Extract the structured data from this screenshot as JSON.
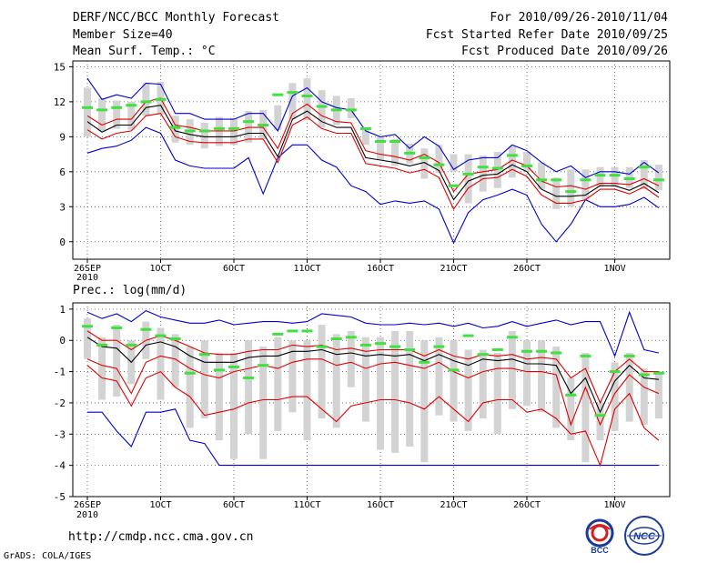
{
  "header": {
    "title": "DERF/NCC/BCC Monthly Forecast",
    "member_size": "Member Size=40",
    "variable": "Mean Surf. Temp.: °C",
    "period": "For 2010/09/26-2010/11/04",
    "refer_date": "Fcst Started Refer Date 2010/09/25",
    "produced_date": "Fcst Produced Date 2010/09/26"
  },
  "footer": {
    "url": "http://cmdp.ncc.cma.gov.cn",
    "credit": "GrADS: COLA/IGES",
    "logo_bcc": "BCC",
    "logo_ncc": "NCC"
  },
  "colors": {
    "box": "#d3d3d3",
    "mean": "#40e040",
    "median": "#000000",
    "quartile": "#e00000",
    "extreme": "#0000cc",
    "grid": "#555555"
  },
  "x_tick_labels": [
    {
      "day": 0,
      "label": "26SEP",
      "sub": "2010"
    },
    {
      "day": 5,
      "label": "1OCT"
    },
    {
      "day": 10,
      "label": "6OCT"
    },
    {
      "day": 15,
      "label": "11OCT"
    },
    {
      "day": 20,
      "label": "16OCT"
    },
    {
      "day": 25,
      "label": "21OCT"
    },
    {
      "day": 30,
      "label": "26OCT"
    },
    {
      "day": 36,
      "label": "1NOV"
    }
  ],
  "chart_data": [
    {
      "type": "box",
      "title": "Mean Surf. Temp.: °C",
      "ylabel": "°C",
      "ylim": [
        -1.5,
        15.5
      ],
      "yticks": [
        0,
        3,
        6,
        9,
        12,
        15
      ],
      "x_days": [
        0,
        1,
        2,
        3,
        4,
        5,
        6,
        7,
        8,
        9,
        10,
        11,
        12,
        13,
        14,
        15,
        16,
        17,
        18,
        19,
        20,
        21,
        22,
        23,
        24,
        25,
        26,
        27,
        28,
        29,
        30,
        31,
        32,
        33,
        34,
        35,
        36,
        37,
        38,
        39
      ],
      "max": [
        14.0,
        12.2,
        12.6,
        12.3,
        13.6,
        13.5,
        11.0,
        11.0,
        10.5,
        10.5,
        10.5,
        11.0,
        11.0,
        9.5,
        12.5,
        13.2,
        12.0,
        11.5,
        11.3,
        9.5,
        9.0,
        9.2,
        8.0,
        9.0,
        8.2,
        6.2,
        7.0,
        7.2,
        7.2,
        8.3,
        7.8,
        6.8,
        6.0,
        6.5,
        5.5,
        6.0,
        6.0,
        5.8,
        6.8,
        5.9
      ],
      "q3": [
        10.8,
        10.0,
        10.5,
        10.5,
        12.0,
        12.3,
        10.0,
        9.8,
        9.5,
        9.5,
        9.5,
        9.8,
        9.8,
        8.0,
        11.0,
        11.8,
        10.8,
        10.3,
        10.2,
        7.8,
        7.5,
        7.3,
        7.0,
        7.5,
        6.8,
        4.3,
        5.8,
        6.0,
        6.2,
        7.0,
        6.5,
        5.2,
        4.7,
        4.8,
        4.5,
        5.0,
        5.0,
        4.9,
        5.4,
        4.8
      ],
      "median": [
        10.3,
        9.4,
        10.0,
        10.0,
        11.5,
        11.7,
        9.5,
        9.2,
        9.0,
        9.0,
        9.0,
        9.3,
        9.3,
        7.3,
        10.5,
        11.2,
        10.3,
        9.8,
        9.8,
        7.2,
        7.0,
        6.8,
        6.5,
        6.8,
        6.1,
        3.6,
        5.2,
        5.7,
        5.8,
        6.6,
        6.0,
        4.5,
        3.9,
        3.9,
        4.0,
        4.8,
        4.8,
        4.4,
        5.0,
        4.2
      ],
      "q1": [
        9.6,
        8.8,
        9.3,
        9.5,
        10.8,
        11.0,
        9.0,
        8.6,
        8.5,
        8.5,
        8.5,
        8.8,
        8.8,
        6.8,
        10.0,
        10.7,
        9.7,
        9.3,
        9.3,
        6.7,
        6.5,
        6.3,
        5.9,
        6.2,
        5.5,
        2.8,
        4.6,
        5.4,
        5.5,
        6.2,
        5.6,
        4.0,
        3.3,
        3.3,
        3.6,
        4.5,
        4.5,
        4.1,
        4.7,
        3.8
      ],
      "min": [
        7.6,
        8.0,
        8.2,
        8.7,
        9.8,
        9.3,
        7.0,
        6.5,
        6.3,
        6.3,
        6.3,
        7.2,
        4.1,
        7.2,
        8.3,
        8.3,
        7.0,
        6.4,
        4.8,
        4.3,
        3.2,
        3.5,
        3.3,
        3.5,
        2.8,
        -0.1,
        2.5,
        3.6,
        4.0,
        4.5,
        4.0,
        1.5,
        0.0,
        1.5,
        3.6,
        3.0,
        3.0,
        3.2,
        3.8,
        2.9
      ],
      "box_low": [
        9.0,
        9.5,
        9.7,
        9.6,
        10.8,
        10.9,
        8.5,
        8.3,
        8.0,
        8.2,
        8.3,
        8.5,
        8.8,
        9.6,
        10.5,
        10.4,
        9.8,
        10.0,
        10.6,
        8.3,
        7.0,
        6.5,
        6.7,
        5.4,
        5.9,
        6.0,
        3.3,
        4.3,
        4.6,
        5.5,
        6.0,
        4.5,
        2.8,
        3.0,
        3.6,
        4.7,
        4.7,
        4.6,
        4.5,
        4.4
      ],
      "box_high": [
        13.2,
        12.3,
        12.1,
        12.0,
        13.6,
        13.7,
        10.8,
        10.5,
        10.2,
        10.7,
        10.6,
        11.2,
        11.3,
        11.7,
        13.6,
        14.0,
        13.0,
        12.5,
        12.3,
        9.8,
        9.0,
        8.8,
        8.4,
        8.0,
        8.3,
        7.5,
        7.5,
        7.4,
        7.7,
        8.2,
        7.7,
        6.8,
        5.5,
        6.2,
        6.2,
        6.4,
        6.4,
        6.4,
        7.0,
        6.6
      ],
      "mean": [
        11.5,
        11.3,
        11.5,
        11.7,
        12.0,
        12.2,
        9.8,
        9.5,
        9.5,
        9.7,
        9.7,
        10.3,
        10.0,
        12.6,
        12.8,
        12.5,
        11.6,
        11.3,
        11.3,
        9.7,
        8.6,
        8.6,
        7.6,
        7.2,
        6.6,
        4.8,
        5.8,
        6.4,
        6.3,
        7.4,
        6.5,
        5.3,
        5.3,
        4.3,
        5.3,
        5.7,
        5.7,
        5.4,
        6.4,
        5.3
      ]
    },
    {
      "type": "box",
      "title": "Prec.: log(mm/d)",
      "ylabel": "log(mm/d)",
      "ylim": [
        -5,
        1.2
      ],
      "yticks": [
        -5,
        -4,
        -3,
        -2,
        -1,
        0,
        1
      ],
      "x_days": [
        0,
        1,
        2,
        3,
        4,
        5,
        6,
        7,
        8,
        9,
        10,
        11,
        12,
        13,
        14,
        15,
        16,
        17,
        18,
        19,
        20,
        21,
        22,
        23,
        24,
        25,
        26,
        27,
        28,
        29,
        30,
        31,
        32,
        33,
        34,
        35,
        36,
        37,
        38,
        39
      ],
      "max": [
        0.9,
        0.7,
        0.85,
        0.6,
        0.95,
        0.75,
        0.65,
        0.55,
        0.55,
        0.65,
        0.5,
        0.55,
        0.6,
        0.6,
        0.55,
        0.6,
        0.85,
        0.8,
        0.75,
        0.55,
        0.5,
        0.5,
        0.55,
        0.5,
        0.55,
        0.45,
        0.55,
        0.4,
        0.45,
        0.6,
        0.45,
        0.55,
        0.65,
        0.5,
        0.6,
        0.6,
        -0.5,
        0.9,
        -0.3,
        -0.4
      ],
      "q3": [
        0.3,
        0.0,
        0.0,
        -0.3,
        0.0,
        0.15,
        0.0,
        -0.2,
        -0.4,
        -0.45,
        -0.45,
        -0.35,
        -0.3,
        -0.3,
        -0.15,
        -0.2,
        -0.15,
        -0.3,
        -0.25,
        -0.35,
        -0.3,
        -0.3,
        -0.3,
        -0.5,
        -0.3,
        -0.5,
        -0.6,
        -0.45,
        -0.5,
        -0.45,
        -0.6,
        -0.55,
        -0.6,
        -1.2,
        -0.9,
        -2.0,
        -1.0,
        -0.6,
        -1.0,
        -1.0
      ],
      "median": [
        0.1,
        -0.2,
        -0.25,
        -0.7,
        -0.15,
        -0.05,
        -0.2,
        -0.5,
        -0.7,
        -0.7,
        -0.7,
        -0.55,
        -0.5,
        -0.5,
        -0.35,
        -0.35,
        -0.3,
        -0.45,
        -0.4,
        -0.5,
        -0.45,
        -0.5,
        -0.45,
        -0.65,
        -0.45,
        -0.65,
        -0.8,
        -0.6,
        -0.65,
        -0.6,
        -0.75,
        -0.75,
        -0.8,
        -1.7,
        -1.2,
        -2.3,
        -1.3,
        -0.8,
        -1.2,
        -1.25
      ],
      "q1": [
        -0.6,
        -0.8,
        -0.9,
        -1.7,
        -0.7,
        -0.5,
        -0.6,
        -0.9,
        -1.1,
        -1.2,
        -1.0,
        -0.9,
        -0.8,
        -0.9,
        -0.7,
        -0.6,
        -0.6,
        -0.8,
        -0.7,
        -0.9,
        -0.75,
        -0.7,
        -0.8,
        -0.9,
        -0.7,
        -1.0,
        -1.2,
        -1.0,
        -0.9,
        -0.9,
        -1.0,
        -1.0,
        -1.1,
        -2.7,
        -1.5,
        -2.7,
        -1.7,
        -1.1,
        -1.5,
        -1.7
      ],
      "q0": [
        -0.8,
        -1.2,
        -1.3,
        -2.1,
        -1.2,
        -1.0,
        -1.5,
        -1.8,
        -2.4,
        -2.3,
        -2.2,
        -2.0,
        -1.9,
        -1.9,
        -1.8,
        -1.8,
        -2.2,
        -2.6,
        -2.1,
        -2.0,
        -1.9,
        -1.9,
        -2.0,
        -2.2,
        -1.8,
        -2.2,
        -2.6,
        -2.0,
        -1.9,
        -1.9,
        -2.3,
        -2.2,
        -2.5,
        -3.0,
        -2.9,
        -4.0,
        -2.2,
        -1.7,
        -2.8,
        -3.2
      ],
      "min": [
        -2.3,
        -2.3,
        -2.9,
        -3.4,
        -2.3,
        -2.3,
        -2.2,
        -3.2,
        -3.3,
        -4.0,
        -4.0,
        -4.0,
        -4.0,
        -4.0,
        -4.0,
        -4.0,
        -4.0,
        -4.0,
        -4.0,
        -4.0,
        -4.0,
        -4.0,
        -4.0,
        -4.0,
        -4.0,
        -4.0,
        -4.0,
        -4.0,
        -4.0,
        -4.0,
        -4.0,
        -4.0,
        -4.0,
        -4.0,
        -4.0,
        -4.0,
        -4.0,
        -4.0,
        -4.0,
        -4.0
      ],
      "box_low": [
        -0.6,
        -1.9,
        -1.8,
        -1.4,
        -0.6,
        -1.9,
        -1.5,
        -2.8,
        -2.5,
        -3.2,
        -3.8,
        -3.0,
        -3.8,
        -2.9,
        -2.3,
        -3.2,
        -2.5,
        -2.8,
        -1.5,
        -2.6,
        -3.5,
        -3.6,
        -3.4,
        -3.9,
        -2.4,
        -2.6,
        -2.9,
        -2.5,
        -3.0,
        -2.2,
        -2.1,
        -2.3,
        -2.8,
        -3.2,
        -3.9,
        -3.2,
        -2.9,
        -2.6,
        -2.7,
        -2.5
      ],
      "box_high": [
        0.7,
        0.1,
        0.5,
        0.0,
        0.6,
        0.4,
        0.2,
        -0.2,
        0.0,
        -0.4,
        -0.4,
        0.0,
        -0.2,
        0.1,
        0.0,
        0.0,
        0.5,
        0.2,
        0.3,
        0.1,
        0.1,
        0.3,
        0.3,
        0.0,
        0.1,
        0.0,
        -0.3,
        -0.3,
        -0.4,
        0.3,
        0.0,
        0.0,
        -0.2,
        -1.2,
        -0.4,
        -2.0,
        -0.7,
        -0.4,
        -0.9,
        -1.0
      ],
      "mean": [
        0.45,
        -0.15,
        0.4,
        -0.15,
        0.35,
        0.15,
        0.05,
        -1.05,
        -0.45,
        -0.95,
        -0.85,
        -1.2,
        -0.8,
        0.2,
        0.3,
        0.3,
        -0.2,
        0.05,
        0.1,
        -0.15,
        -0.1,
        -0.2,
        -0.3,
        -0.7,
        -0.2,
        -0.95,
        0.15,
        -0.45,
        -0.3,
        0.1,
        -0.35,
        -0.35,
        -0.4,
        -1.75,
        -0.5,
        -2.4,
        -1.0,
        -0.5,
        -1.1,
        -1.05
      ]
    }
  ]
}
